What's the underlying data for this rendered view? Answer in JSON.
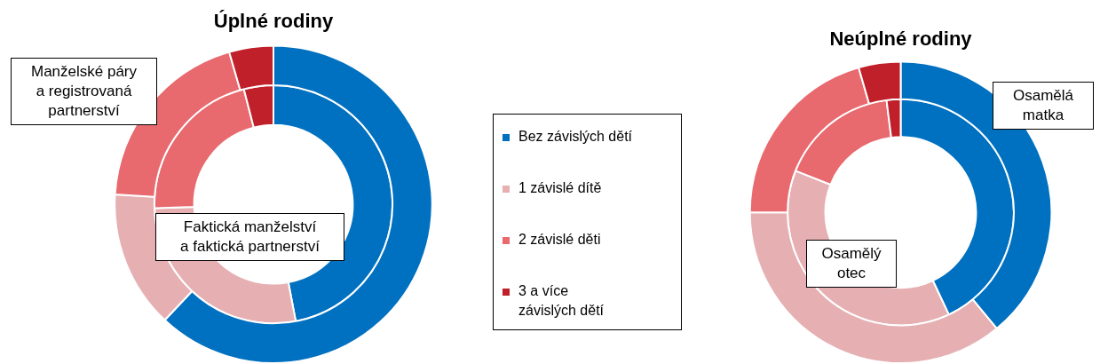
{
  "chart_data": [
    {
      "type": "donut",
      "title": "Úplné rodiny",
      "categories": [
        "Bez závislých dětí",
        "1 závislé dítě",
        "2 závislé děti",
        "3 a více\nzávislých dětí"
      ],
      "colors": [
        "#0070c0",
        "#e6b0b3",
        "#e8696e",
        "#c0202a"
      ],
      "legend": "right",
      "series": [
        {
          "name": "Manželské páry\na registrovaná\npartnerství",
          "values": [
            62,
            14,
            19.5,
            4.5
          ]
        },
        {
          "name": "Faktická manželství\na faktická partnerství",
          "values": [
            47,
            27.5,
            21.5,
            4
          ]
        }
      ]
    },
    {
      "type": "donut",
      "title": "Neúplné rodiny",
      "categories": [
        null,
        null,
        null,
        null
      ],
      "colors": [
        "#0070c0",
        "#e6b0b3",
        "#e8696e",
        "#c0202a"
      ],
      "series": [
        {
          "name": "Osamělá\nmatka",
          "values": [
            39,
            36,
            20.5,
            4.5
          ]
        },
        {
          "name": "Osamělý\notec",
          "values": [
            43,
            38,
            17,
            2
          ]
        }
      ]
    }
  ]
}
